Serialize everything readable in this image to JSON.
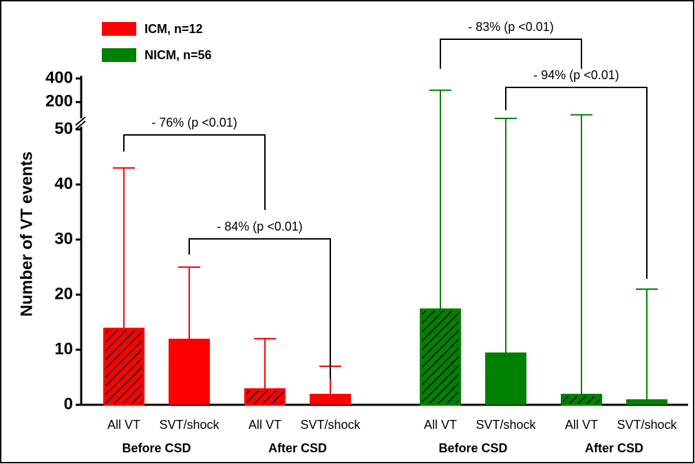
{
  "chart_data": {
    "type": "bar",
    "y_label": "Number of VT events",
    "categories": [
      "All VT",
      "SVT/shock",
      "All VT",
      "SVT/shock"
    ],
    "groups": [
      "Before CSD",
      "After CSD"
    ],
    "hatched": [
      true,
      false,
      true,
      false
    ],
    "series": [
      {
        "name": "ICM, n=12",
        "color": "#ff0000",
        "values": [
          14,
          12,
          3,
          2
        ],
        "errors": [
          29,
          13,
          9,
          5
        ]
      },
      {
        "name": "NICM, n=56",
        "color": "#008000",
        "values": [
          17.5,
          9.5,
          2,
          1
        ],
        "errors": [
          282.5,
          52.5,
          90,
          20
        ]
      }
    ],
    "ylim": [
      0,
      50
    ],
    "yticks": [
      0,
      10,
      20,
      30,
      40,
      50
    ],
    "ylim_upper": [
      50,
      400
    ],
    "yticks_upper": [
      200,
      400
    ],
    "annotations": [
      "- 76% (p <0.01)",
      "- 84% (p <0.01)",
      "- 83% (p <0.01)",
      "- 94% (p <0.01)"
    ]
  }
}
